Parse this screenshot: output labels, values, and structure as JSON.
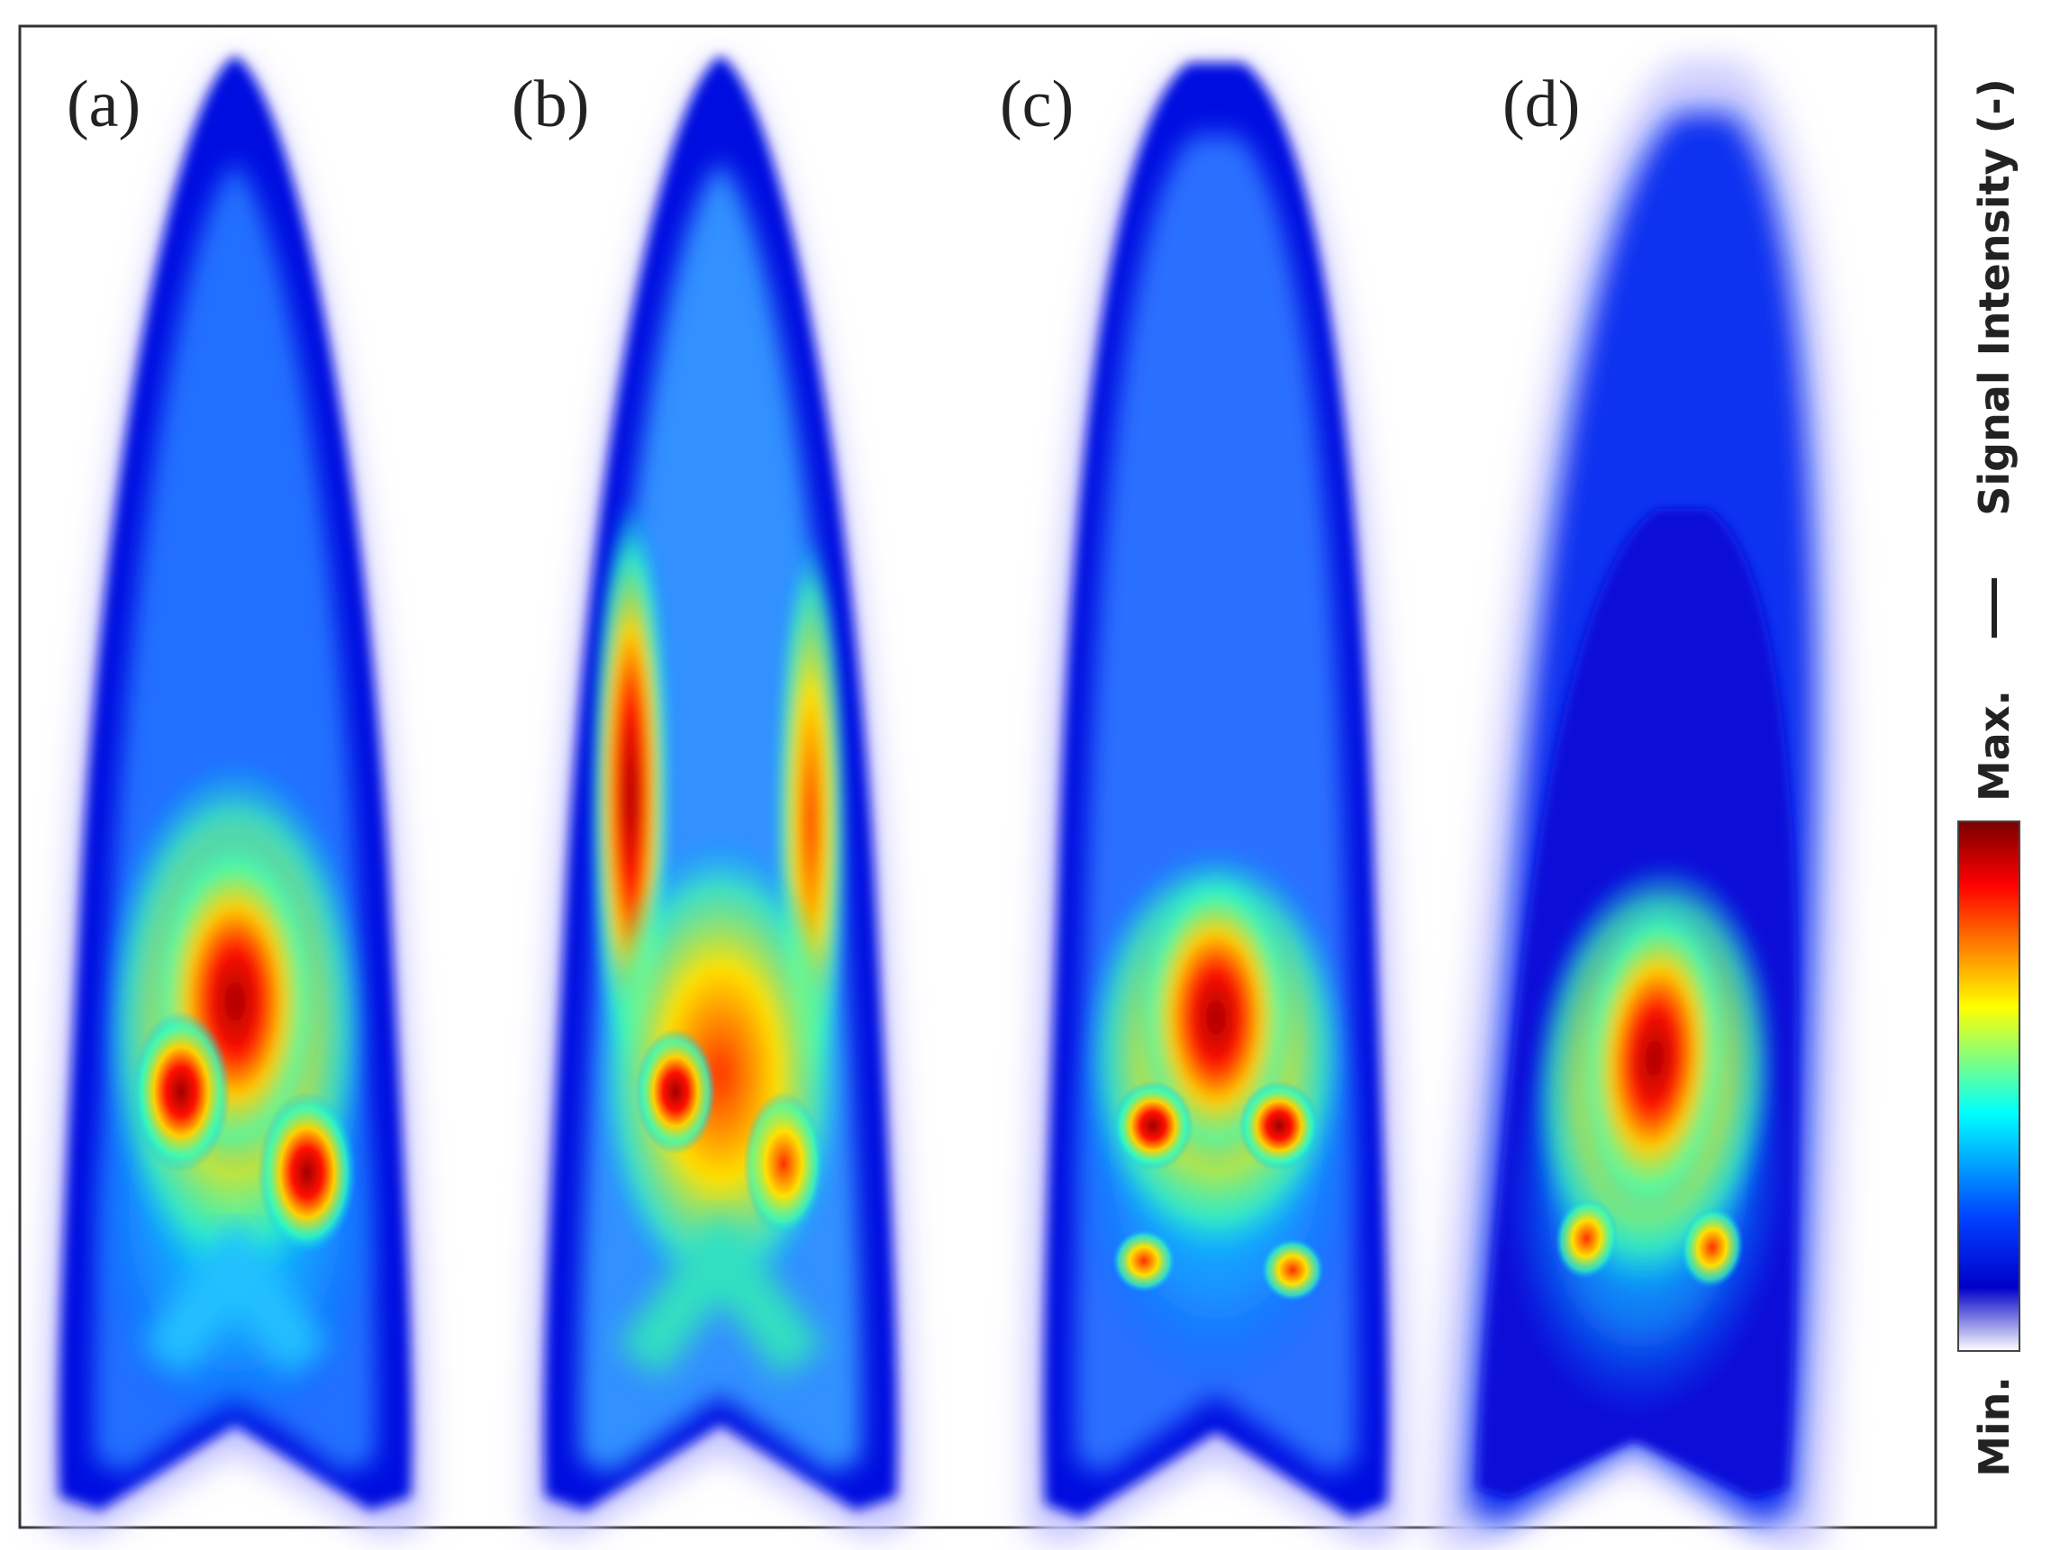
{
  "panels": [
    {
      "label": "(a)"
    },
    {
      "label": "(b)"
    },
    {
      "label": "(c)"
    },
    {
      "label": "(d)"
    }
  ],
  "colorbar": {
    "title": "Signal Intensity (-)",
    "max_label": "Max.",
    "min_label": "Min."
  }
}
